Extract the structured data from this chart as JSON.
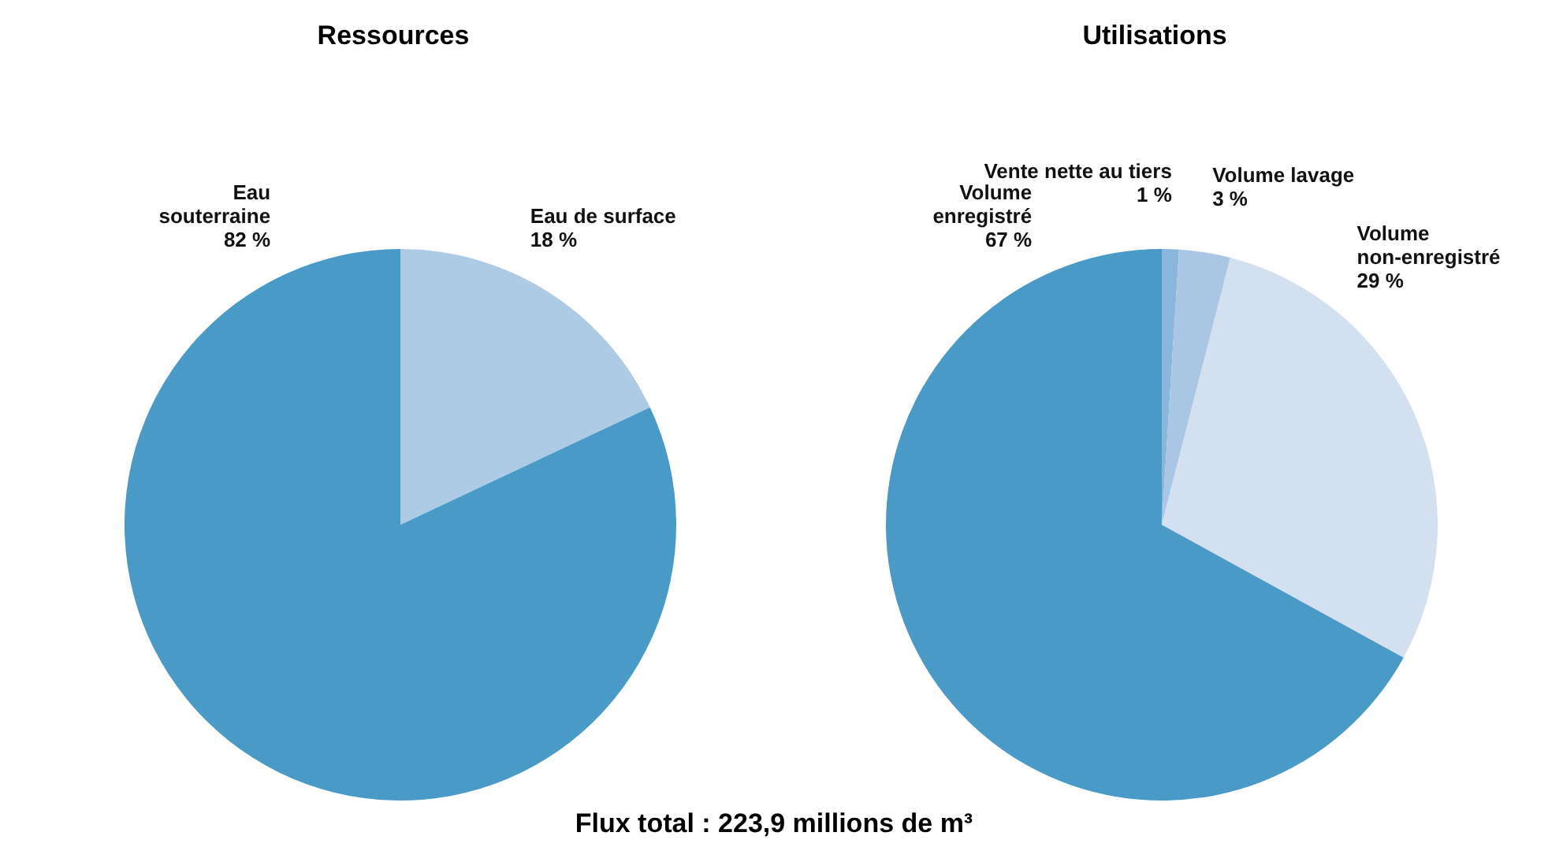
{
  "chart_data": [
    {
      "type": "pie",
      "title": "Ressources",
      "categories": [
        "Eau de surface",
        "Eau souterraine"
      ],
      "values": [
        18,
        82
      ],
      "value_labels": [
        "18 %",
        "82 %"
      ],
      "colors": [
        "#aecbe5",
        "#4a9ac8"
      ],
      "annotations": [
        "Flux total : 223,9 millions de m³"
      ]
    },
    {
      "type": "pie",
      "title": "Utilisations",
      "categories": [
        "Vente nette au tiers",
        "Volume lavage",
        "Volume non-enregistré",
        "Volume enregistré"
      ],
      "values": [
        1,
        3,
        29,
        67
      ],
      "value_labels": [
        "1 %",
        "3 %",
        "29 %",
        "67 %"
      ],
      "colors": [
        "#8ab6dc",
        "#a9c7e4",
        "#d3e0ef",
        "#4a9ac8"
      ]
    }
  ]
}
